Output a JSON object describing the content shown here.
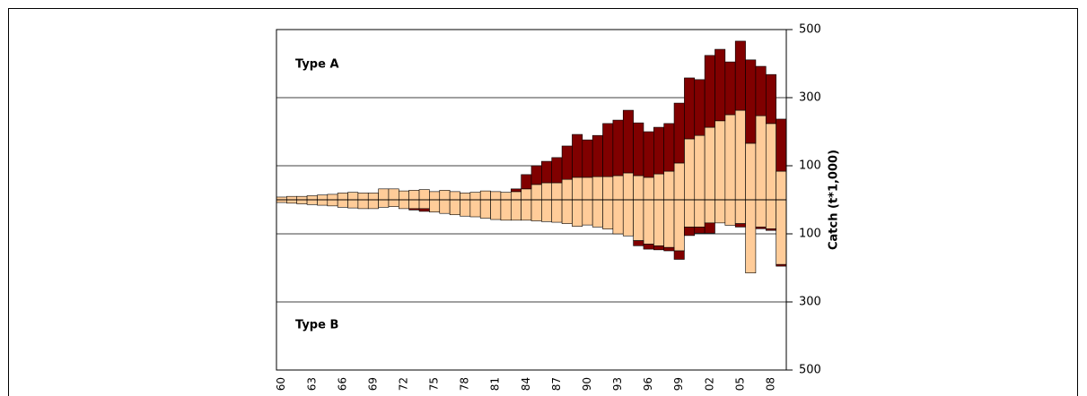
{
  "chart_data": {
    "type": "bar",
    "stacked": true,
    "ylabel": "Catch (t*1,000)",
    "annotations": [
      "Type A",
      "Type B"
    ],
    "categories": [
      "60",
      null,
      null,
      "63",
      null,
      null,
      "66",
      null,
      null,
      "69",
      null,
      null,
      "72",
      null,
      null,
      "75",
      null,
      null,
      "78",
      null,
      null,
      "81",
      null,
      null,
      "84",
      null,
      null,
      "87",
      null,
      null,
      "90",
      null,
      null,
      "93",
      null,
      null,
      "96",
      null,
      null,
      "99",
      null,
      null,
      "02",
      null,
      null,
      "05",
      null,
      null,
      "08",
      null
    ],
    "series": [
      {
        "color": "#ffcc99",
        "values": [
          8,
          10,
          10,
          12,
          14,
          16,
          20,
          22,
          20,
          20,
          32,
          32,
          26,
          28,
          30,
          24,
          28,
          24,
          20,
          22,
          26,
          24,
          22,
          24,
          32,
          45,
          50,
          50,
          60,
          66,
          66,
          68,
          68,
          71,
          79,
          71,
          66,
          76,
          84,
          108,
          179,
          189,
          213,
          232,
          250,
          263,
          166,
          247,
          224,
          84
        ]
      },
      {
        "color": "#800000",
        "values": [
          0,
          0,
          0,
          0,
          0,
          0,
          0,
          0,
          0,
          0,
          0,
          0,
          0,
          0,
          0,
          0,
          0,
          0,
          0,
          0,
          0,
          0,
          0,
          8,
          42,
          55,
          63,
          74,
          98,
          126,
          110,
          121,
          156,
          163,
          184,
          155,
          134,
          137,
          140,
          176,
          179,
          164,
          211,
          210,
          155,
          203,
          245,
          145,
          144,
          153
        ]
      },
      {
        "color": "#ffcc99",
        "values": [
          -8,
          -10,
          -12,
          -14,
          -16,
          -18,
          -22,
          -24,
          -26,
          -26,
          -22,
          -20,
          -26,
          -26,
          -26,
          -36,
          -40,
          -44,
          -48,
          -50,
          -54,
          -58,
          -60,
          -60,
          -60,
          -62,
          -64,
          -66,
          -70,
          -78,
          -74,
          -80,
          -86,
          -100,
          -106,
          -120,
          -130,
          -135,
          -140,
          -150,
          -80,
          -80,
          -68,
          -68,
          -75,
          -70,
          -215,
          -80,
          -85,
          -190
        ]
      },
      {
        "color": "#800000",
        "values": [
          0,
          0,
          0,
          0,
          0,
          0,
          0,
          0,
          0,
          0,
          0,
          0,
          0,
          -4,
          -8,
          0,
          0,
          0,
          0,
          0,
          0,
          0,
          0,
          0,
          0,
          0,
          0,
          0,
          0,
          0,
          0,
          0,
          0,
          0,
          0,
          -15,
          -15,
          -12,
          -10,
          -25,
          -25,
          -18,
          -30,
          0,
          0,
          -10,
          0,
          -5,
          -5,
          -5
        ]
      }
    ],
    "ylim": [
      -500,
      500
    ],
    "yticks": [
      {
        "value": -500,
        "label": "500"
      },
      {
        "value": -300,
        "label": "300"
      },
      {
        "value": -100,
        "label": "100"
      },
      100,
      300,
      500
    ],
    "negative_tick_color": "#ff0000",
    "grid": true
  }
}
